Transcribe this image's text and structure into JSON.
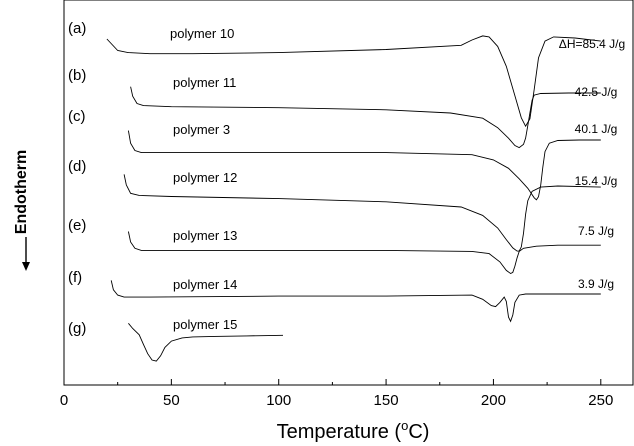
{
  "chart_data": {
    "type": "line",
    "xlabel": "Temperature (°C)",
    "xlabel_parts": [
      "Temperature (",
      "o",
      "C)"
    ],
    "ylabel": "Endotherm",
    "xlim": [
      0,
      265
    ],
    "xticks": [
      0,
      50,
      100,
      150,
      200,
      250
    ],
    "grid": false,
    "series": [
      {
        "label": "(a)",
        "name": "polymer 10",
        "enthalpy": "ΔH=85.4 J/g",
        "points": [
          [
            20,
            0.0
          ],
          [
            25,
            -1.1
          ],
          [
            30,
            -1.3
          ],
          [
            40,
            -1.4
          ],
          [
            60,
            -1.4
          ],
          [
            100,
            -1.3
          ],
          [
            150,
            -1.0
          ],
          [
            185,
            -0.6
          ],
          [
            190,
            -0.1
          ],
          [
            195,
            0.3
          ],
          [
            198,
            0.2
          ],
          [
            202,
            -0.7
          ],
          [
            206,
            -2.6
          ],
          [
            210,
            -5.4
          ],
          [
            213,
            -7.5
          ],
          [
            215,
            -8.3
          ],
          [
            217,
            -7.6
          ],
          [
            219,
            -4.8
          ],
          [
            221,
            -1.8
          ],
          [
            224,
            -0.2
          ],
          [
            228,
            0.2
          ],
          [
            238,
            0.1
          ],
          [
            250,
            -0.2
          ]
        ]
      },
      {
        "label": "(b)",
        "name": "polymer 11",
        "enthalpy": "42.5 J/g",
        "points": [
          [
            31,
            0.6
          ],
          [
            32,
            -0.3
          ],
          [
            34,
            -1.0
          ],
          [
            37,
            -1.2
          ],
          [
            50,
            -1.3
          ],
          [
            100,
            -1.4
          ],
          [
            150,
            -1.6
          ],
          [
            180,
            -1.9
          ],
          [
            195,
            -2.4
          ],
          [
            202,
            -3.3
          ],
          [
            207,
            -4.3
          ],
          [
            210,
            -5.0
          ],
          [
            212,
            -5.2
          ],
          [
            214,
            -4.9
          ],
          [
            215,
            -4.3
          ],
          [
            216,
            -3.1
          ],
          [
            217,
            -1.9
          ],
          [
            218,
            -0.7
          ],
          [
            219,
            -0.2
          ],
          [
            222,
            -0.05
          ],
          [
            235,
            0.0
          ],
          [
            250,
            0.0
          ]
        ]
      },
      {
        "label": "(c)",
        "name": "polymer 3",
        "enthalpy": "40.1 J/g",
        "points": [
          [
            30,
            0.9
          ],
          [
            31,
            -0.3
          ],
          [
            33,
            -1.0
          ],
          [
            36,
            -1.2
          ],
          [
            50,
            -1.2
          ],
          [
            100,
            -1.2
          ],
          [
            150,
            -1.2
          ],
          [
            190,
            -1.4
          ],
          [
            200,
            -1.9
          ],
          [
            207,
            -2.7
          ],
          [
            212,
            -3.7
          ],
          [
            216,
            -4.6
          ],
          [
            219,
            -5.5
          ],
          [
            220,
            -5.7
          ],
          [
            221,
            -5.4
          ],
          [
            222,
            -4.3
          ],
          [
            223,
            -2.6
          ],
          [
            224,
            -1.1
          ],
          [
            226,
            -0.3
          ],
          [
            230,
            -0.05
          ],
          [
            240,
            0.0
          ],
          [
            250,
            0.0
          ]
        ]
      },
      {
        "label": "(d)",
        "name": "polymer 12",
        "enthalpy": "15.4 J/g",
        "points": [
          [
            28,
            1.1
          ],
          [
            29,
            0.1
          ],
          [
            31,
            -0.7
          ],
          [
            35,
            -0.9
          ],
          [
            50,
            -1.0
          ],
          [
            100,
            -1.2
          ],
          [
            150,
            -1.5
          ],
          [
            185,
            -2.0
          ],
          [
            195,
            -2.8
          ],
          [
            202,
            -4.0
          ],
          [
            206,
            -5.1
          ],
          [
            209,
            -5.9
          ],
          [
            211,
            -6.2
          ],
          [
            212,
            -6.2
          ],
          [
            213,
            -5.8
          ],
          [
            214,
            -4.5
          ],
          [
            215,
            -2.7
          ],
          [
            216,
            -1.4
          ],
          [
            218,
            -0.5
          ],
          [
            222,
            -0.1
          ],
          [
            230,
            0.0
          ],
          [
            250,
            -0.1
          ]
        ]
      },
      {
        "label": "(e)",
        "name": "polymer 13",
        "enthalpy": "7.5 J/g",
        "points": [
          [
            30,
            1.0
          ],
          [
            31,
            0.0
          ],
          [
            33,
            -0.6
          ],
          [
            36,
            -0.8
          ],
          [
            50,
            -0.8
          ],
          [
            100,
            -0.8
          ],
          [
            150,
            -0.8
          ],
          [
            190,
            -0.9
          ],
          [
            198,
            -1.1
          ],
          [
            203,
            -1.9
          ],
          [
            206,
            -2.7
          ],
          [
            208,
            -3.0
          ],
          [
            209,
            -2.9
          ],
          [
            210,
            -2.3
          ],
          [
            211,
            -1.5
          ],
          [
            212,
            -0.9
          ],
          [
            214,
            -0.6
          ],
          [
            220,
            -0.4
          ],
          [
            230,
            -0.3
          ],
          [
            250,
            -0.3
          ]
        ]
      },
      {
        "label": "(f)",
        "name": "polymer 14",
        "enthalpy": "3.9 J/g",
        "points": [
          [
            22,
            1.3
          ],
          [
            23,
            0.4
          ],
          [
            25,
            -0.1
          ],
          [
            28,
            -0.3
          ],
          [
            40,
            -0.3
          ],
          [
            100,
            -0.2
          ],
          [
            150,
            -0.2
          ],
          [
            190,
            -0.1
          ],
          [
            195,
            -0.5
          ],
          [
            199,
            -1.1
          ],
          [
            201,
            -1.2
          ],
          [
            203,
            -0.8
          ],
          [
            205,
            -0.3
          ],
          [
            206,
            -0.7
          ],
          [
            207,
            -2.2
          ],
          [
            208,
            -2.6
          ],
          [
            209,
            -2.0
          ],
          [
            210,
            -0.8
          ],
          [
            212,
            -0.1
          ],
          [
            215,
            0.0
          ],
          [
            230,
            0.0
          ],
          [
            250,
            0.0
          ]
        ]
      },
      {
        "label": "(g)",
        "name": "polymer 15",
        "enthalpy": "",
        "points": [
          [
            30,
            1.5
          ],
          [
            32,
            1.0
          ],
          [
            35,
            0.4
          ],
          [
            37,
            -0.5
          ],
          [
            39,
            -1.4
          ],
          [
            41,
            -2.0
          ],
          [
            43,
            -2.1
          ],
          [
            45,
            -1.6
          ],
          [
            47,
            -0.8
          ],
          [
            50,
            -0.2
          ],
          [
            55,
            0.1
          ],
          [
            60,
            0.2
          ],
          [
            70,
            0.25
          ],
          [
            85,
            0.3
          ],
          [
            102,
            0.35
          ]
        ]
      }
    ]
  }
}
